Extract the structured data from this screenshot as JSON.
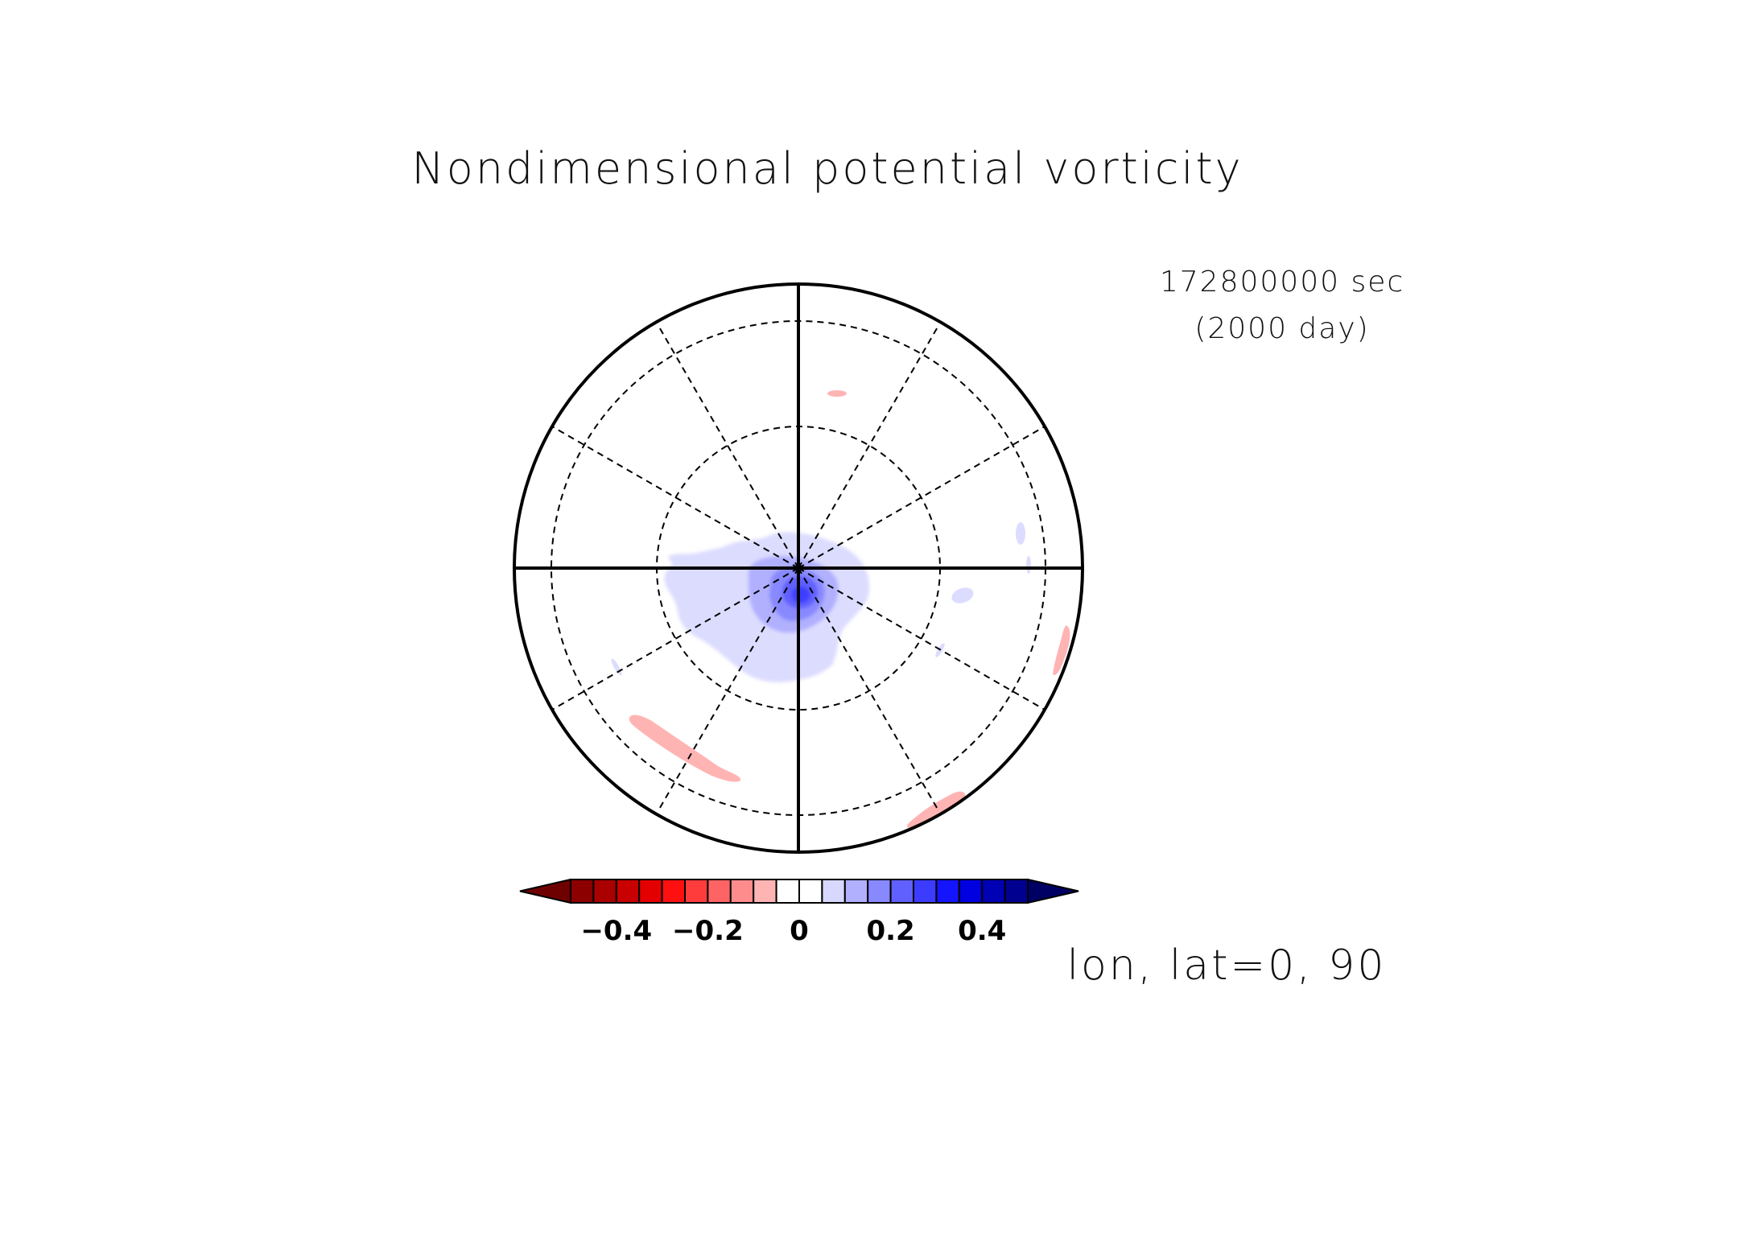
{
  "figure": {
    "title": "Nondimensional potential vorticity",
    "time_seconds": "172800000 sec",
    "time_days": "(2000 day)",
    "slice_label": "lon, lat=0, 90"
  },
  "chart_data": {
    "type": "heatmap",
    "projection": "north polar stereographic",
    "title": "Nondimensional potential vorticity",
    "variable": "Nondimensional potential vorticity",
    "time": "172800000 sec",
    "time_days": "(2000 day)",
    "slice": "lon, lat=0, 90",
    "grid": true,
    "colorbar": {
      "orientation": "horizontal",
      "placement": "bottom",
      "extend": "both",
      "levels": [
        -0.5,
        -0.45,
        -0.4,
        -0.35,
        -0.3,
        -0.25,
        -0.2,
        -0.15,
        -0.1,
        -0.05,
        0,
        0.05,
        0.1,
        0.15,
        0.2,
        0.25,
        0.3,
        0.35,
        0.4,
        0.45,
        0.5
      ],
      "colors": [
        "#6e0000",
        "#8c0000",
        "#aa0000",
        "#c80000",
        "#e40000",
        "#ff1010",
        "#ff3c3c",
        "#ff6464",
        "#ff8c8c",
        "#ffb4b4",
        "#ffffff",
        "#ffffff",
        "#d8d8ff",
        "#b0b0ff",
        "#8888ff",
        "#6060ff",
        "#3c3cff",
        "#1414ff",
        "#0000e0",
        "#0000b4",
        "#000090",
        "#000064"
      ],
      "tick_values": [
        -0.4,
        -0.2,
        0,
        0.2,
        0.4
      ],
      "tick_labels": [
        "−0.4",
        "−0.2",
        "0",
        "0.2",
        "0.4"
      ]
    },
    "features": [
      {
        "description": "positive vortex centred near the pole",
        "value_range": [
          0.05,
          0.3
        ]
      },
      {
        "description": "weak negative filament, lower-left",
        "value_range": [
          -0.1,
          -0.05
        ]
      },
      {
        "description": "weak negative patches near the rim",
        "value_range": [
          -0.1,
          -0.05
        ]
      }
    ]
  }
}
